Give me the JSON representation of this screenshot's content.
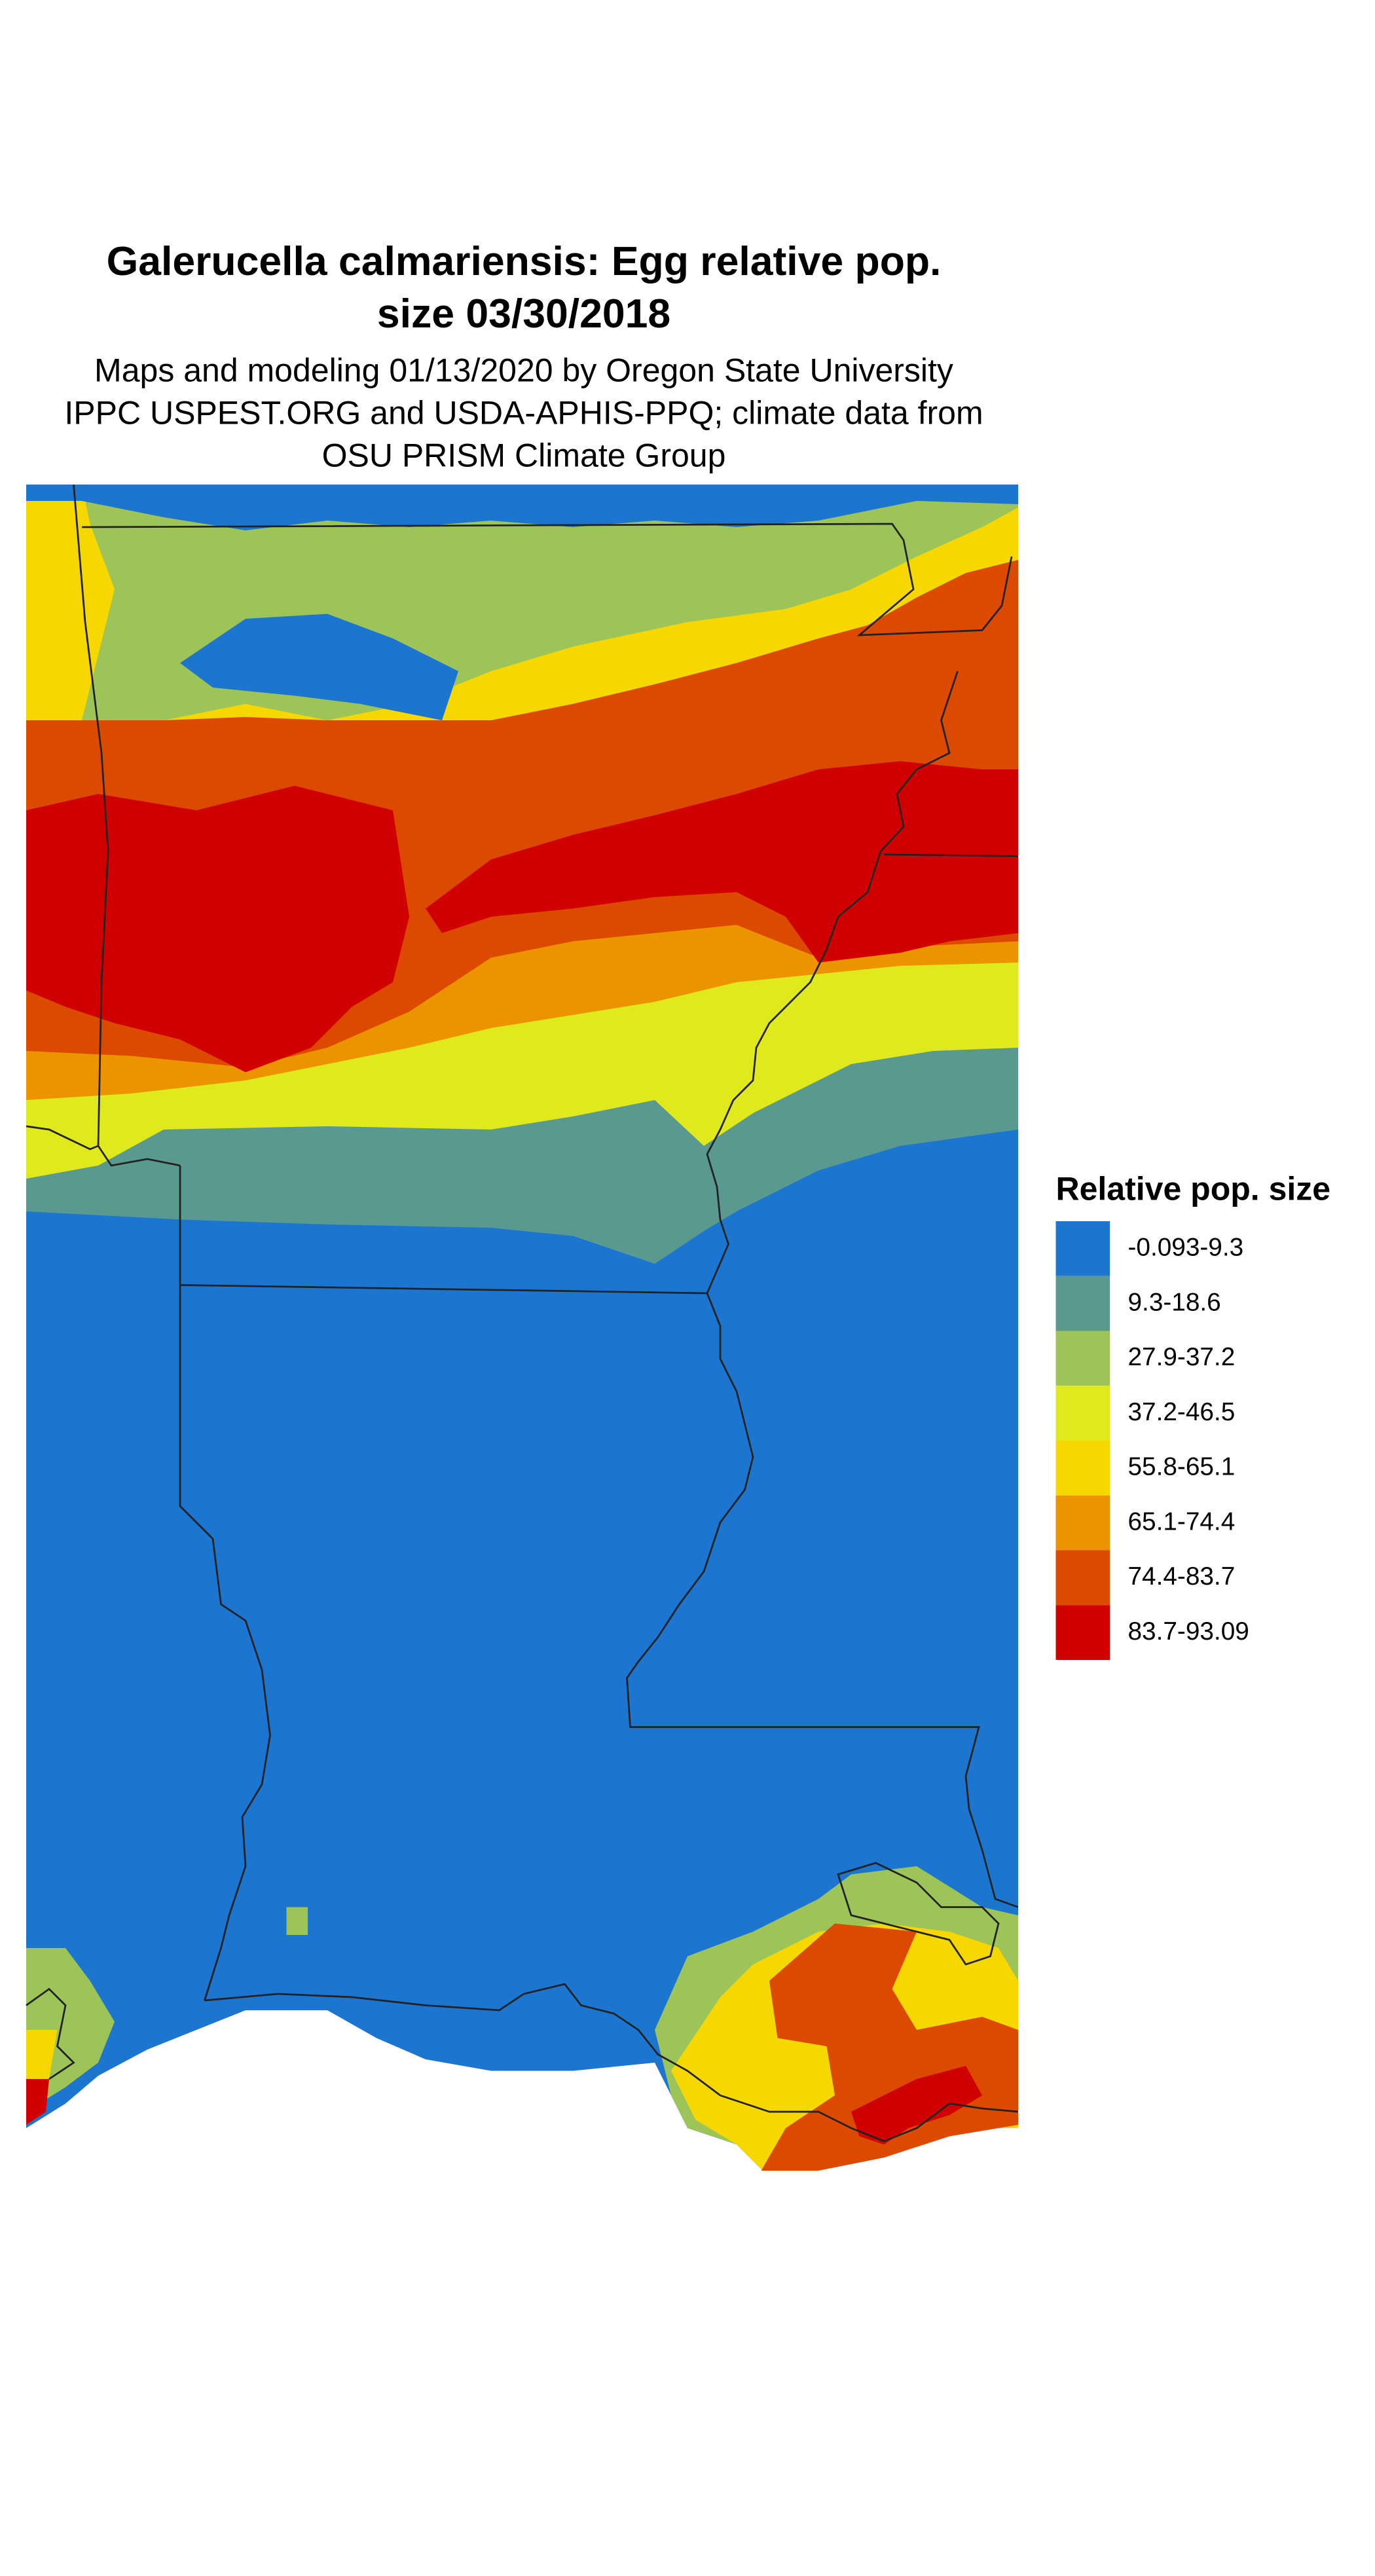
{
  "title": [
    "Galerucella calmariensis: Egg relative pop.",
    "size 03/30/2018"
  ],
  "subtitle": [
    "Maps and modeling 01/13/2020 by Oregon State University",
    "IPPC USPEST.ORG and USDA-APHIS-PPQ; climate data from",
    "OSU PRISM Climate Group"
  ],
  "legend": {
    "title": "Relative pop. size",
    "items": [
      {
        "label": "-0.093-9.3",
        "color": "#1c75cf"
      },
      {
        "label": "9.3-18.6",
        "color": "#5a998f"
      },
      {
        "label": "27.9-37.2",
        "color": "#9cc459"
      },
      {
        "label": "37.2-46.5",
        "color": "#dfe91b"
      },
      {
        "label": "55.8-65.1",
        "color": "#f6d800"
      },
      {
        "label": "65.1-74.4",
        "color": "#ec9400"
      },
      {
        "label": "74.4-83.7",
        "color": "#dc4a00"
      },
      {
        "label": "83.7-93.09",
        "color": "#d10000"
      }
    ]
  }
}
